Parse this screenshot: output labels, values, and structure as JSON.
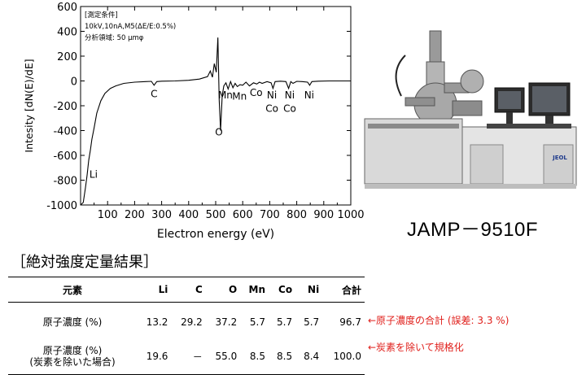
{
  "chart_data": {
    "type": "line",
    "title": "",
    "xlabel": "Electron energy (eV)",
    "ylabel": "Intesity [dN(E)/dE]",
    "xlim": [
      0,
      1000
    ],
    "ylim": [
      -1000,
      600
    ],
    "xticks": [
      100,
      200,
      300,
      400,
      500,
      600,
      700,
      800,
      900,
      1000
    ],
    "yticks": [
      -1000,
      -800,
      -600,
      -400,
      -200,
      0,
      200,
      400,
      600
    ],
    "grid": false,
    "conditions": {
      "heading": "[測定条件]",
      "line1": "10kV,10nA,M5(ΔE/E:0.5%)",
      "line2": "分析領域: 50 μmφ"
    },
    "annotations": [
      {
        "text": "Li",
        "x": 48,
        "y": -780
      },
      {
        "text": "C",
        "x": 272,
        "y": -130
      },
      {
        "text": "O",
        "x": 512,
        "y": -440
      },
      {
        "text": "Mn",
        "x": 536,
        "y": -140
      },
      {
        "text": "Mn",
        "x": 588,
        "y": -150
      },
      {
        "text": "Co",
        "x": 650,
        "y": -120
      },
      {
        "text": "Ni",
        "x": 708,
        "y": -140
      },
      {
        "text": "Co",
        "x": 708,
        "y": -250
      },
      {
        "text": "Ni",
        "x": 774,
        "y": -140
      },
      {
        "text": "Co",
        "x": 774,
        "y": -250
      },
      {
        "text": "Ni",
        "x": 846,
        "y": -140
      }
    ],
    "series": [
      {
        "x": [
          0,
          10,
          18,
          24,
          30,
          36,
          42,
          50,
          60,
          75,
          90,
          110,
          130,
          160,
          200,
          240,
          262,
          272,
          282,
          300,
          350,
          400,
          440,
          470,
          480,
          488,
          495,
          502,
          508,
          513,
          518,
          524,
          530,
          538,
          546,
          555,
          564,
          572,
          580,
          590,
          600,
          612,
          625,
          640,
          652,
          662,
          672,
          690,
          705,
          712,
          720,
          740,
          760,
          770,
          778,
          786,
          800,
          820,
          840,
          848,
          856,
          880,
          920,
          960,
          1000
        ],
        "y": [
          -1000,
          -980,
          -860,
          -760,
          -640,
          -560,
          -470,
          -380,
          -260,
          -160,
          -100,
          -60,
          -40,
          -20,
          -10,
          -5,
          -3,
          -35,
          -5,
          -2,
          0,
          5,
          15,
          35,
          80,
          30,
          140,
          70,
          350,
          -150,
          -400,
          -120,
          -40,
          -15,
          -65,
          -5,
          -55,
          -20,
          -45,
          -30,
          -35,
          -10,
          -40,
          -15,
          -25,
          -10,
          -20,
          -5,
          -15,
          -60,
          -5,
          -2,
          -5,
          -60,
          -5,
          -20,
          -3,
          -5,
          -10,
          -35,
          -5,
          -2,
          0,
          0,
          0
        ]
      }
    ]
  },
  "instrument": {
    "model_name": "JAMP－9510F",
    "brand_badge": "JEOL"
  },
  "results": {
    "title": "［絶対強度定量結果］",
    "header": {
      "label": "元素",
      "elements": [
        "Li",
        "C",
        "O",
        "Mn",
        "Co",
        "Ni"
      ],
      "total": "合計"
    },
    "rows": [
      {
        "label_line1": "原子濃度 (%)",
        "label_line2": "",
        "values": [
          "13.2",
          "29.2",
          "37.2",
          "5.7",
          "5.7",
          "5.7"
        ],
        "total": "96.7",
        "note": "←原子濃度の合計 (誤差: 3.3 %)"
      },
      {
        "label_line1": "原子濃度 (%)",
        "label_line2": "(炭素を除いた場合)",
        "values": [
          "19.6",
          "－",
          "55.0",
          "8.5",
          "8.5",
          "8.4"
        ],
        "total": "100.0",
        "note": "←炭素を除いて規格化"
      }
    ]
  }
}
